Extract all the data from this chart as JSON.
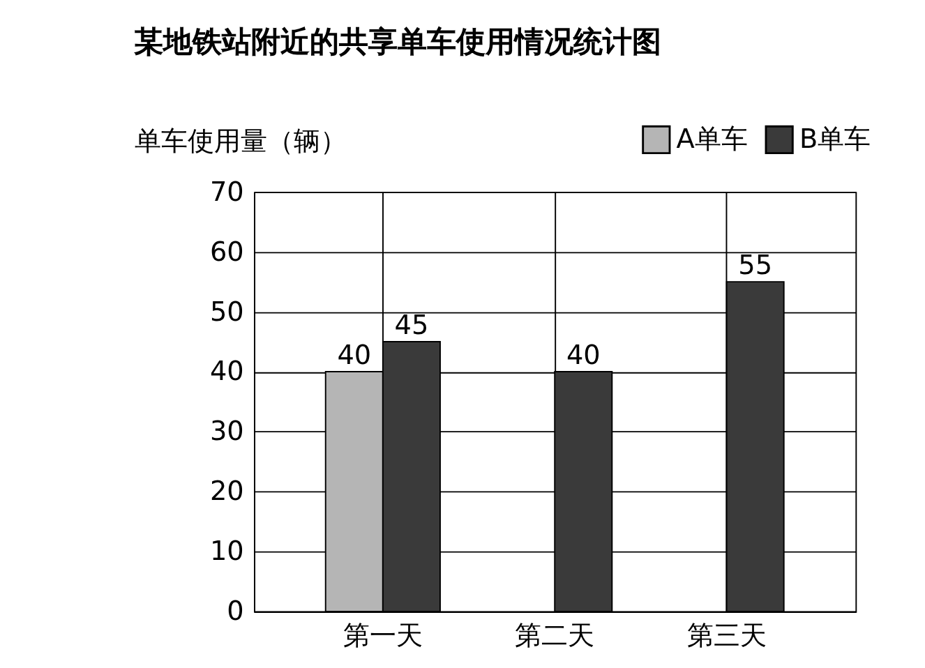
{
  "chart_data": {
    "type": "bar",
    "title": "某地铁站附近的共享单车使用情况统计图",
    "ylabel": "单车使用量（辆）",
    "categories": [
      "第一天",
      "第二天",
      "第三天"
    ],
    "series": [
      {
        "name": "A单车",
        "color": "#b5b5b5",
        "values": [
          40,
          null,
          null
        ]
      },
      {
        "name": "B单车",
        "color": "#3a3a3a",
        "values": [
          45,
          40,
          55
        ]
      }
    ],
    "ylim": [
      0,
      70
    ],
    "yticks": [
      0,
      10,
      20,
      30,
      40,
      50,
      60,
      70
    ],
    "grid": true,
    "legend": "top right",
    "data_labels": true
  }
}
